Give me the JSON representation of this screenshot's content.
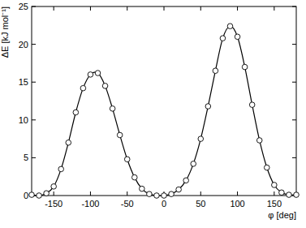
{
  "chart_data": {
    "type": "line",
    "x_label": "φ [deg]",
    "y_label": "ΔE [kJ mol⁻¹]",
    "x": [
      -180,
      -170,
      -160,
      -150,
      -140,
      -130,
      -120,
      -110,
      -100,
      -90,
      -80,
      -70,
      -60,
      -50,
      -40,
      -30,
      -20,
      -10,
      0,
      10,
      20,
      30,
      40,
      50,
      60,
      70,
      80,
      90,
      100,
      110,
      120,
      130,
      140,
      150,
      160,
      170,
      180
    ],
    "series": [
      {
        "name": "ΔE",
        "color": "#000000",
        "marker": "circle",
        "line_style": "solid",
        "values": [
          0.1,
          0.0,
          0.3,
          1.2,
          3.5,
          7.0,
          11.0,
          14.2,
          16.0,
          16.2,
          14.5,
          11.5,
          8.0,
          4.8,
          2.4,
          0.9,
          0.2,
          0.0,
          0.0,
          0.2,
          0.8,
          2.0,
          4.2,
          7.5,
          11.8,
          16.5,
          20.8,
          22.4,
          21.0,
          17.0,
          12.0,
          7.3,
          3.7,
          1.4,
          0.4,
          0.1,
          0.1
        ]
      }
    ],
    "xlim": [
      -180,
      180
    ],
    "ylim": [
      0,
      25
    ],
    "xticks": [
      -150,
      -100,
      -50,
      0,
      50,
      100,
      150
    ],
    "yticks": [
      0,
      5,
      10,
      15,
      20,
      25
    ],
    "grid": false
  }
}
